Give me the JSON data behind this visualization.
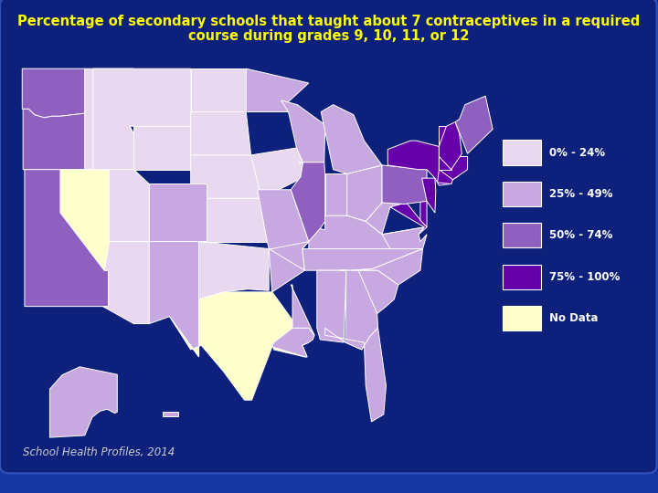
{
  "title_line1": "Percentage of secondary schools that taught about 7 contraceptives in a required",
  "title_line2": "course during grades 9, 10, 11, or 12",
  "title_color": "#FFFF00",
  "title_fontsize": 10.5,
  "background_color": "#1535a0",
  "panel_color": "#0d20  7a",
  "footer_text": "School Health Profiles, 2014",
  "footer_color": "#cccccc",
  "footer_fontsize": 8.5,
  "legend_labels": [
    "0% - 24%",
    "25% - 49%",
    "50% - 74%",
    "75% - 100%",
    "No Data"
  ],
  "legend_colors": [
    "#e8d8f0",
    "#c8a8e0",
    "#9060c0",
    "#6600aa",
    "#ffffcc"
  ],
  "state_colors": {
    "AL": "#c8a8e0",
    "AK": "#c8a8e0",
    "AZ": "#e8d8f0",
    "AR": "#c8a8e0",
    "CA": "#9060c0",
    "CO": "#c8a8e0",
    "CT": "#6600aa",
    "DE": "#6600aa",
    "FL": "#c8a8e0",
    "GA": "#c8a8e0",
    "HI": "#c8a8e0",
    "ID": "#e8d8f0",
    "IL": "#9060c0",
    "IN": "#c8a8e0",
    "IA": "#e8d8f0",
    "KS": "#e8d8f0",
    "KY": "#c8a8e0",
    "LA": "#c8a8e0",
    "ME": "#9060c0",
    "MD": "#6600aa",
    "MA": "#6600aa",
    "MI": "#c8a8e0",
    "MN": "#c8a8e0",
    "MS": "#c8a8e0",
    "MO": "#c8a8e0",
    "MT": "#e8d8f0",
    "NE": "#e8d8f0",
    "NV": "#ffffcc",
    "NH": "#6600aa",
    "NJ": "#6600aa",
    "NM": "#c8a8e0",
    "NY": "#6600aa",
    "NC": "#c8a8e0",
    "ND": "#e8d8f0",
    "OH": "#c8a8e0",
    "OK": "#e8d8f0",
    "OR": "#9060c0",
    "PA": "#9060c0",
    "RI": "#6600aa",
    "SC": "#c8a8e0",
    "SD": "#e8d8f0",
    "TN": "#c8a8e0",
    "TX": "#ffffcc",
    "UT": "#e8d8f0",
    "VT": "#6600aa",
    "VA": "#c8a8e0",
    "WA": "#9060c0",
    "WV": "#c8a8e0",
    "WI": "#c8a8e0",
    "WY": "#e8d8f0",
    "DC": "#6600aa"
  }
}
